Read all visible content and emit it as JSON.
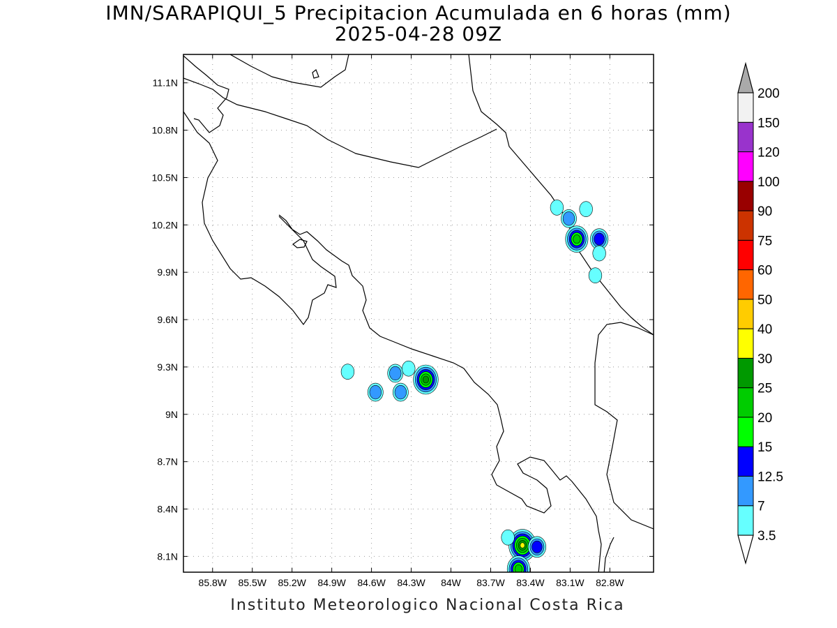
{
  "title_line1": "IMN/SARAPIQUI_5 Precipitacion Acumulada en 6 horas (mm)",
  "title_line2": "2025-04-28 09Z",
  "footer": "Instituto Meteorologico Nacional Costa Rica",
  "map": {
    "lon_range": [
      -86.02,
      -82.47
    ],
    "lat_range": [
      8.0,
      11.28
    ],
    "grid": true,
    "lat_ticks": [
      {
        "value": 11.1,
        "label": "11.1N"
      },
      {
        "value": 10.8,
        "label": "10.8N"
      },
      {
        "value": 10.5,
        "label": "10.5N"
      },
      {
        "value": 10.2,
        "label": "10.2N"
      },
      {
        "value": 9.9,
        "label": "9.9N"
      },
      {
        "value": 9.6,
        "label": "9.6N"
      },
      {
        "value": 9.3,
        "label": "9.3N"
      },
      {
        "value": 9.0,
        "label": "9N"
      },
      {
        "value": 8.7,
        "label": "8.7N"
      },
      {
        "value": 8.4,
        "label": "8.4N"
      },
      {
        "value": 8.1,
        "label": "8.1N"
      }
    ],
    "lon_ticks": [
      {
        "value": -85.8,
        "label": "85.8W"
      },
      {
        "value": -85.5,
        "label": "85.5W"
      },
      {
        "value": -85.2,
        "label": "85.2W"
      },
      {
        "value": -84.9,
        "label": "84.9W"
      },
      {
        "value": -84.6,
        "label": "84.6W"
      },
      {
        "value": -84.3,
        "label": "84.3W"
      },
      {
        "value": -84.0,
        "label": "84W"
      },
      {
        "value": -83.7,
        "label": "83.7W"
      },
      {
        "value": -83.4,
        "label": "83.4W"
      },
      {
        "value": -83.1,
        "label": "83.1W"
      },
      {
        "value": -82.8,
        "label": "82.8W"
      }
    ]
  },
  "colorbar": {
    "levels": [
      "3.5",
      "7",
      "12.5",
      "15",
      "20",
      "25",
      "30",
      "40",
      "50",
      "60",
      "75",
      "90",
      "100",
      "120",
      "150",
      "200"
    ],
    "colors": [
      "#66ffff",
      "#3399ff",
      "#0000ff",
      "#00ff00",
      "#00cc00",
      "#009900",
      "#ffff00",
      "#ffcc00",
      "#ff6600",
      "#ff0000",
      "#cc3300",
      "#990000",
      "#ff00ff",
      "#9933cc",
      "#f2f2f2",
      "#aaaaaa"
    ]
  },
  "precip_cells": [
    {
      "lon": -83.05,
      "lat": 10.11,
      "max_level": 4
    },
    {
      "lon": -82.88,
      "lat": 10.11,
      "max_level": 2
    },
    {
      "lon": -83.11,
      "lat": 10.24,
      "max_level": 1
    },
    {
      "lon": -83.2,
      "lat": 10.31,
      "max_level": 0
    },
    {
      "lon": -82.98,
      "lat": 10.3,
      "max_level": 0
    },
    {
      "lon": -82.91,
      "lat": 9.88,
      "max_level": 0
    },
    {
      "lon": -82.88,
      "lat": 10.02,
      "max_level": 0
    },
    {
      "lon": -84.19,
      "lat": 9.22,
      "max_level": 5
    },
    {
      "lon": -84.42,
      "lat": 9.26,
      "max_level": 1
    },
    {
      "lon": -84.57,
      "lat": 9.14,
      "max_level": 1
    },
    {
      "lon": -84.38,
      "lat": 9.14,
      "max_level": 1
    },
    {
      "lon": -84.32,
      "lat": 9.29,
      "max_level": 0
    },
    {
      "lon": -84.78,
      "lat": 9.27,
      "max_level": 0
    },
    {
      "lon": -83.46,
      "lat": 8.17,
      "max_level": 6
    },
    {
      "lon": -83.35,
      "lat": 8.16,
      "max_level": 2
    },
    {
      "lon": -83.49,
      "lat": 8.02,
      "max_level": 4
    },
    {
      "lon": -83.57,
      "lat": 8.22,
      "max_level": 0
    }
  ]
}
